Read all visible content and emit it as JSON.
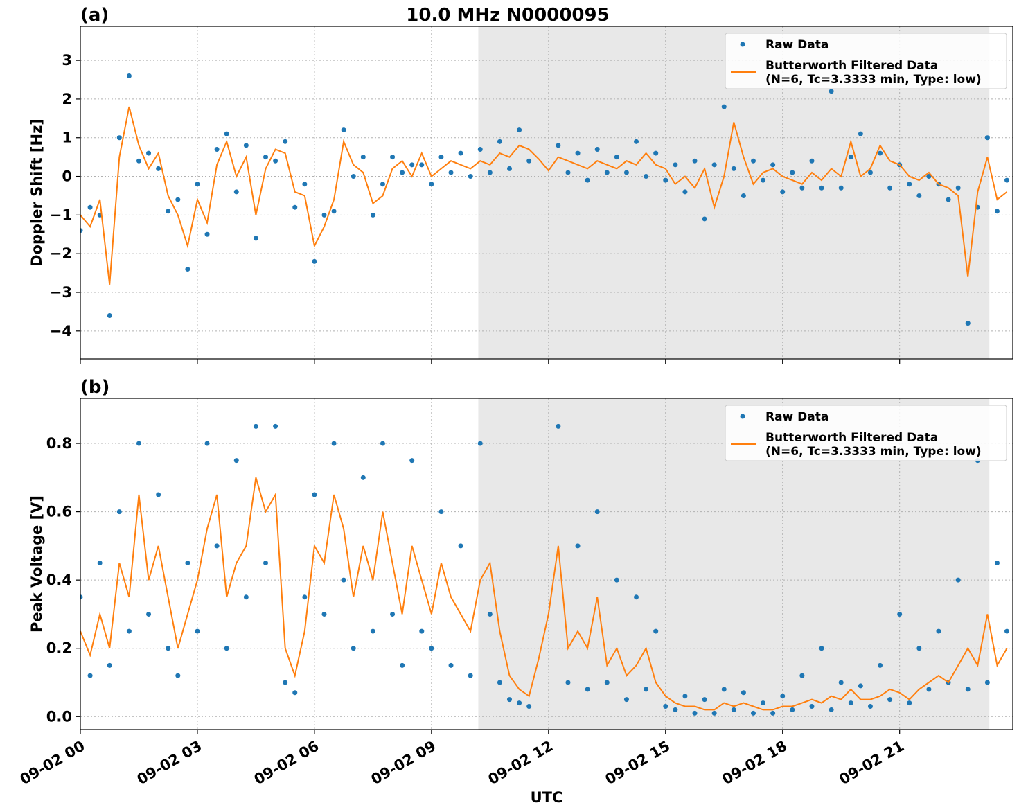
{
  "chart_data": [
    {
      "type": "scatter_line",
      "panel_label": "(a)",
      "title": "10.0 MHz N0000095",
      "y_label": "Doppler Shift [Hz]",
      "xlim": [
        0,
        23.9
      ],
      "xticks": [
        0,
        3,
        6,
        9,
        12,
        15,
        18,
        21
      ],
      "show_xtick_labels": false,
      "ylim": [
        -4.72,
        3.88
      ],
      "yticks": [
        {
          "value": 3,
          "label": "3"
        },
        {
          "value": 2,
          "label": "2"
        },
        {
          "value": 1,
          "label": "1"
        },
        {
          "value": 0,
          "label": "0"
        },
        {
          "value": -1,
          "label": "−1"
        },
        {
          "value": -2,
          "label": "−2"
        },
        {
          "value": -3,
          "label": "−3"
        },
        {
          "value": -4,
          "label": "−4"
        }
      ],
      "grid": true,
      "legend": "upper right",
      "shaded_span": [
        10.2,
        23.3
      ],
      "x": [
        0,
        0.25,
        0.5,
        0.75,
        1,
        1.25,
        1.5,
        1.75,
        2,
        2.25,
        2.5,
        2.75,
        3,
        3.25,
        3.5,
        3.75,
        4,
        4.25,
        4.5,
        4.75,
        5,
        5.25,
        5.5,
        5.75,
        6,
        6.25,
        6.5,
        6.75,
        7,
        7.25,
        7.5,
        7.75,
        8,
        8.25,
        8.5,
        8.75,
        9,
        9.25,
        9.5,
        9.75,
        10,
        10.25,
        10.5,
        10.75,
        11,
        11.25,
        11.5,
        11.75,
        12,
        12.25,
        12.5,
        12.75,
        13,
        13.25,
        13.5,
        13.75,
        14,
        14.25,
        14.5,
        14.75,
        15,
        15.25,
        15.5,
        15.75,
        16,
        16.25,
        16.5,
        16.75,
        17,
        17.25,
        17.5,
        17.75,
        18,
        18.25,
        18.5,
        18.75,
        19,
        19.25,
        19.5,
        19.75,
        20,
        20.25,
        20.5,
        20.75,
        21,
        21.25,
        21.5,
        21.75,
        22,
        22.25,
        22.5,
        22.75,
        23,
        23.25,
        23.5,
        23.75
      ],
      "series": [
        {
          "name": "Raw Data",
          "style": "points",
          "color": "#1f77b4",
          "values": [
            -1.4,
            -0.8,
            -1.0,
            -3.6,
            1.0,
            2.6,
            0.4,
            0.6,
            0.2,
            -0.9,
            -0.6,
            -2.4,
            -0.2,
            -1.5,
            0.7,
            1.1,
            -0.4,
            0.8,
            -1.6,
            0.5,
            0.4,
            0.9,
            -0.8,
            -0.2,
            -2.2,
            -1.0,
            -0.9,
            1.2,
            0.0,
            0.5,
            -1.0,
            -0.2,
            0.5,
            0.1,
            0.3,
            0.3,
            -0.2,
            0.5,
            0.1,
            0.6,
            0.0,
            0.7,
            0.1,
            0.9,
            0.2,
            1.2,
            0.4,
            null,
            null,
            0.8,
            0.1,
            0.6,
            -0.1,
            0.7,
            0.1,
            0.5,
            0.1,
            0.9,
            0.0,
            0.6,
            -0.1,
            0.3,
            -0.4,
            0.4,
            -1.1,
            0.3,
            1.8,
            0.2,
            -0.5,
            0.4,
            -0.1,
            0.3,
            -0.4,
            0.1,
            -0.3,
            0.4,
            -0.3,
            2.2,
            -0.3,
            0.5,
            1.1,
            0.1,
            0.6,
            -0.3,
            0.3,
            -0.2,
            -0.5,
            0.0,
            -0.2,
            -0.6,
            -0.3,
            -3.8,
            -0.8,
            1.0,
            -0.9,
            -0.1
          ]
        },
        {
          "name": "Butterworth Filtered Data\n(N=6, Tc=3.3333 min, Type: low)",
          "style": "line",
          "color": "#ff7f0e",
          "values": [
            -1.0,
            -1.3,
            -0.6,
            -2.8,
            0.5,
            1.8,
            0.8,
            0.2,
            0.6,
            -0.5,
            -1.0,
            -1.8,
            -0.6,
            -1.2,
            0.3,
            0.9,
            0.0,
            0.5,
            -1.0,
            0.2,
            0.7,
            0.6,
            -0.4,
            -0.5,
            -1.8,
            -1.3,
            -0.6,
            0.9,
            0.3,
            0.1,
            -0.7,
            -0.5,
            0.2,
            0.4,
            0.0,
            0.6,
            0.0,
            0.2,
            0.4,
            0.3,
            0.2,
            0.4,
            0.3,
            0.6,
            0.5,
            0.8,
            0.7,
            0.45,
            0.15,
            0.5,
            0.4,
            0.3,
            0.2,
            0.4,
            0.3,
            0.2,
            0.4,
            0.3,
            0.6,
            0.3,
            0.2,
            -0.2,
            0.0,
            -0.3,
            0.2,
            -0.8,
            0.0,
            1.4,
            0.5,
            -0.2,
            0.1,
            0.2,
            0.0,
            -0.1,
            -0.2,
            0.1,
            -0.1,
            0.2,
            0.0,
            0.9,
            0.0,
            0.2,
            0.8,
            0.4,
            0.3,
            0.0,
            -0.1,
            0.1,
            -0.2,
            -0.3,
            -0.5,
            -2.6,
            -0.4,
            0.5,
            -0.6,
            -0.4
          ]
        }
      ]
    },
    {
      "type": "scatter_line",
      "panel_label": "(b)",
      "y_label": "Peak Voltage [V]",
      "x_label": "UTC",
      "xlim": [
        0,
        23.9
      ],
      "xticks": [
        {
          "value": 0,
          "label": "09-02 00"
        },
        {
          "value": 3,
          "label": "09-02 03"
        },
        {
          "value": 6,
          "label": "09-02 06"
        },
        {
          "value": 9,
          "label": "09-02 09"
        },
        {
          "value": 12,
          "label": "09-02 12"
        },
        {
          "value": 15,
          "label": "09-02 15"
        },
        {
          "value": 18,
          "label": "09-02 18"
        },
        {
          "value": 21,
          "label": "09-02 21"
        }
      ],
      "show_xtick_labels": true,
      "ylim": [
        -0.038,
        0.932
      ],
      "yticks": [
        {
          "value": 0,
          "label": "0.0"
        },
        {
          "value": 0.2,
          "label": "0.2"
        },
        {
          "value": 0.4,
          "label": "0.4"
        },
        {
          "value": 0.6,
          "label": "0.6"
        },
        {
          "value": 0.8,
          "label": "0.8"
        }
      ],
      "grid": true,
      "legend": "upper right",
      "shaded_span": [
        10.2,
        23.3
      ],
      "x": [
        0,
        0.25,
        0.5,
        0.75,
        1,
        1.25,
        1.5,
        1.75,
        2,
        2.25,
        2.5,
        2.75,
        3,
        3.25,
        3.5,
        3.75,
        4,
        4.25,
        4.5,
        4.75,
        5,
        5.25,
        5.5,
        5.75,
        6,
        6.25,
        6.5,
        6.75,
        7,
        7.25,
        7.5,
        7.75,
        8,
        8.25,
        8.5,
        8.75,
        9,
        9.25,
        9.5,
        9.75,
        10,
        10.25,
        10.5,
        10.75,
        11,
        11.25,
        11.5,
        11.75,
        12,
        12.25,
        12.5,
        12.75,
        13,
        13.25,
        13.5,
        13.75,
        14,
        14.25,
        14.5,
        14.75,
        15,
        15.25,
        15.5,
        15.75,
        16,
        16.25,
        16.5,
        16.75,
        17,
        17.25,
        17.5,
        17.75,
        18,
        18.25,
        18.5,
        18.75,
        19,
        19.25,
        19.5,
        19.75,
        20,
        20.25,
        20.5,
        20.75,
        21,
        21.25,
        21.5,
        21.75,
        22,
        22.25,
        22.5,
        22.75,
        23,
        23.25,
        23.5,
        23.75
      ],
      "series": [
        {
          "name": "Raw Data",
          "style": "points",
          "color": "#1f77b4",
          "values": [
            0.35,
            0.12,
            0.45,
            0.15,
            0.6,
            0.25,
            0.8,
            0.3,
            0.65,
            0.2,
            0.12,
            0.45,
            0.25,
            0.8,
            0.5,
            0.2,
            0.75,
            0.35,
            0.85,
            0.45,
            0.85,
            0.1,
            0.07,
            0.35,
            0.65,
            0.3,
            0.8,
            0.4,
            0.2,
            0.7,
            0.25,
            0.8,
            0.3,
            0.15,
            0.75,
            0.25,
            0.2,
            0.6,
            0.15,
            0.5,
            0.12,
            0.8,
            0.3,
            0.1,
            0.05,
            0.04,
            0.03,
            null,
            null,
            0.85,
            0.1,
            0.5,
            0.08,
            0.6,
            0.1,
            0.4,
            0.05,
            0.35,
            0.08,
            0.25,
            0.03,
            0.02,
            0.06,
            0.01,
            0.05,
            0.01,
            0.08,
            0.02,
            0.07,
            0.01,
            0.04,
            0.01,
            0.06,
            0.02,
            0.12,
            0.03,
            0.2,
            0.02,
            0.1,
            0.04,
            0.09,
            0.03,
            0.15,
            0.05,
            0.3,
            0.04,
            0.2,
            0.08,
            0.25,
            0.1,
            0.4,
            0.08,
            0.75,
            0.1,
            0.45,
            0.25
          ]
        },
        {
          "name": "Butterworth Filtered Data\n(N=6, Tc=3.3333 min, Type: low)",
          "style": "line",
          "color": "#ff7f0e",
          "values": [
            0.25,
            0.18,
            0.3,
            0.2,
            0.45,
            0.35,
            0.65,
            0.4,
            0.5,
            0.35,
            0.2,
            0.3,
            0.4,
            0.55,
            0.65,
            0.35,
            0.45,
            0.5,
            0.7,
            0.6,
            0.65,
            0.2,
            0.12,
            0.25,
            0.5,
            0.45,
            0.65,
            0.55,
            0.35,
            0.5,
            0.4,
            0.6,
            0.45,
            0.3,
            0.5,
            0.4,
            0.3,
            0.45,
            0.35,
            0.3,
            0.25,
            0.4,
            0.45,
            0.25,
            0.12,
            0.08,
            0.06,
            0.17,
            0.3,
            0.5,
            0.2,
            0.25,
            0.2,
            0.35,
            0.15,
            0.2,
            0.12,
            0.15,
            0.2,
            0.1,
            0.06,
            0.04,
            0.03,
            0.03,
            0.02,
            0.02,
            0.04,
            0.03,
            0.04,
            0.03,
            0.02,
            0.02,
            0.03,
            0.03,
            0.04,
            0.05,
            0.04,
            0.06,
            0.05,
            0.08,
            0.05,
            0.05,
            0.06,
            0.08,
            0.07,
            0.05,
            0.08,
            0.1,
            0.12,
            0.1,
            0.15,
            0.2,
            0.15,
            0.3,
            0.15,
            0.2
          ]
        }
      ]
    }
  ]
}
